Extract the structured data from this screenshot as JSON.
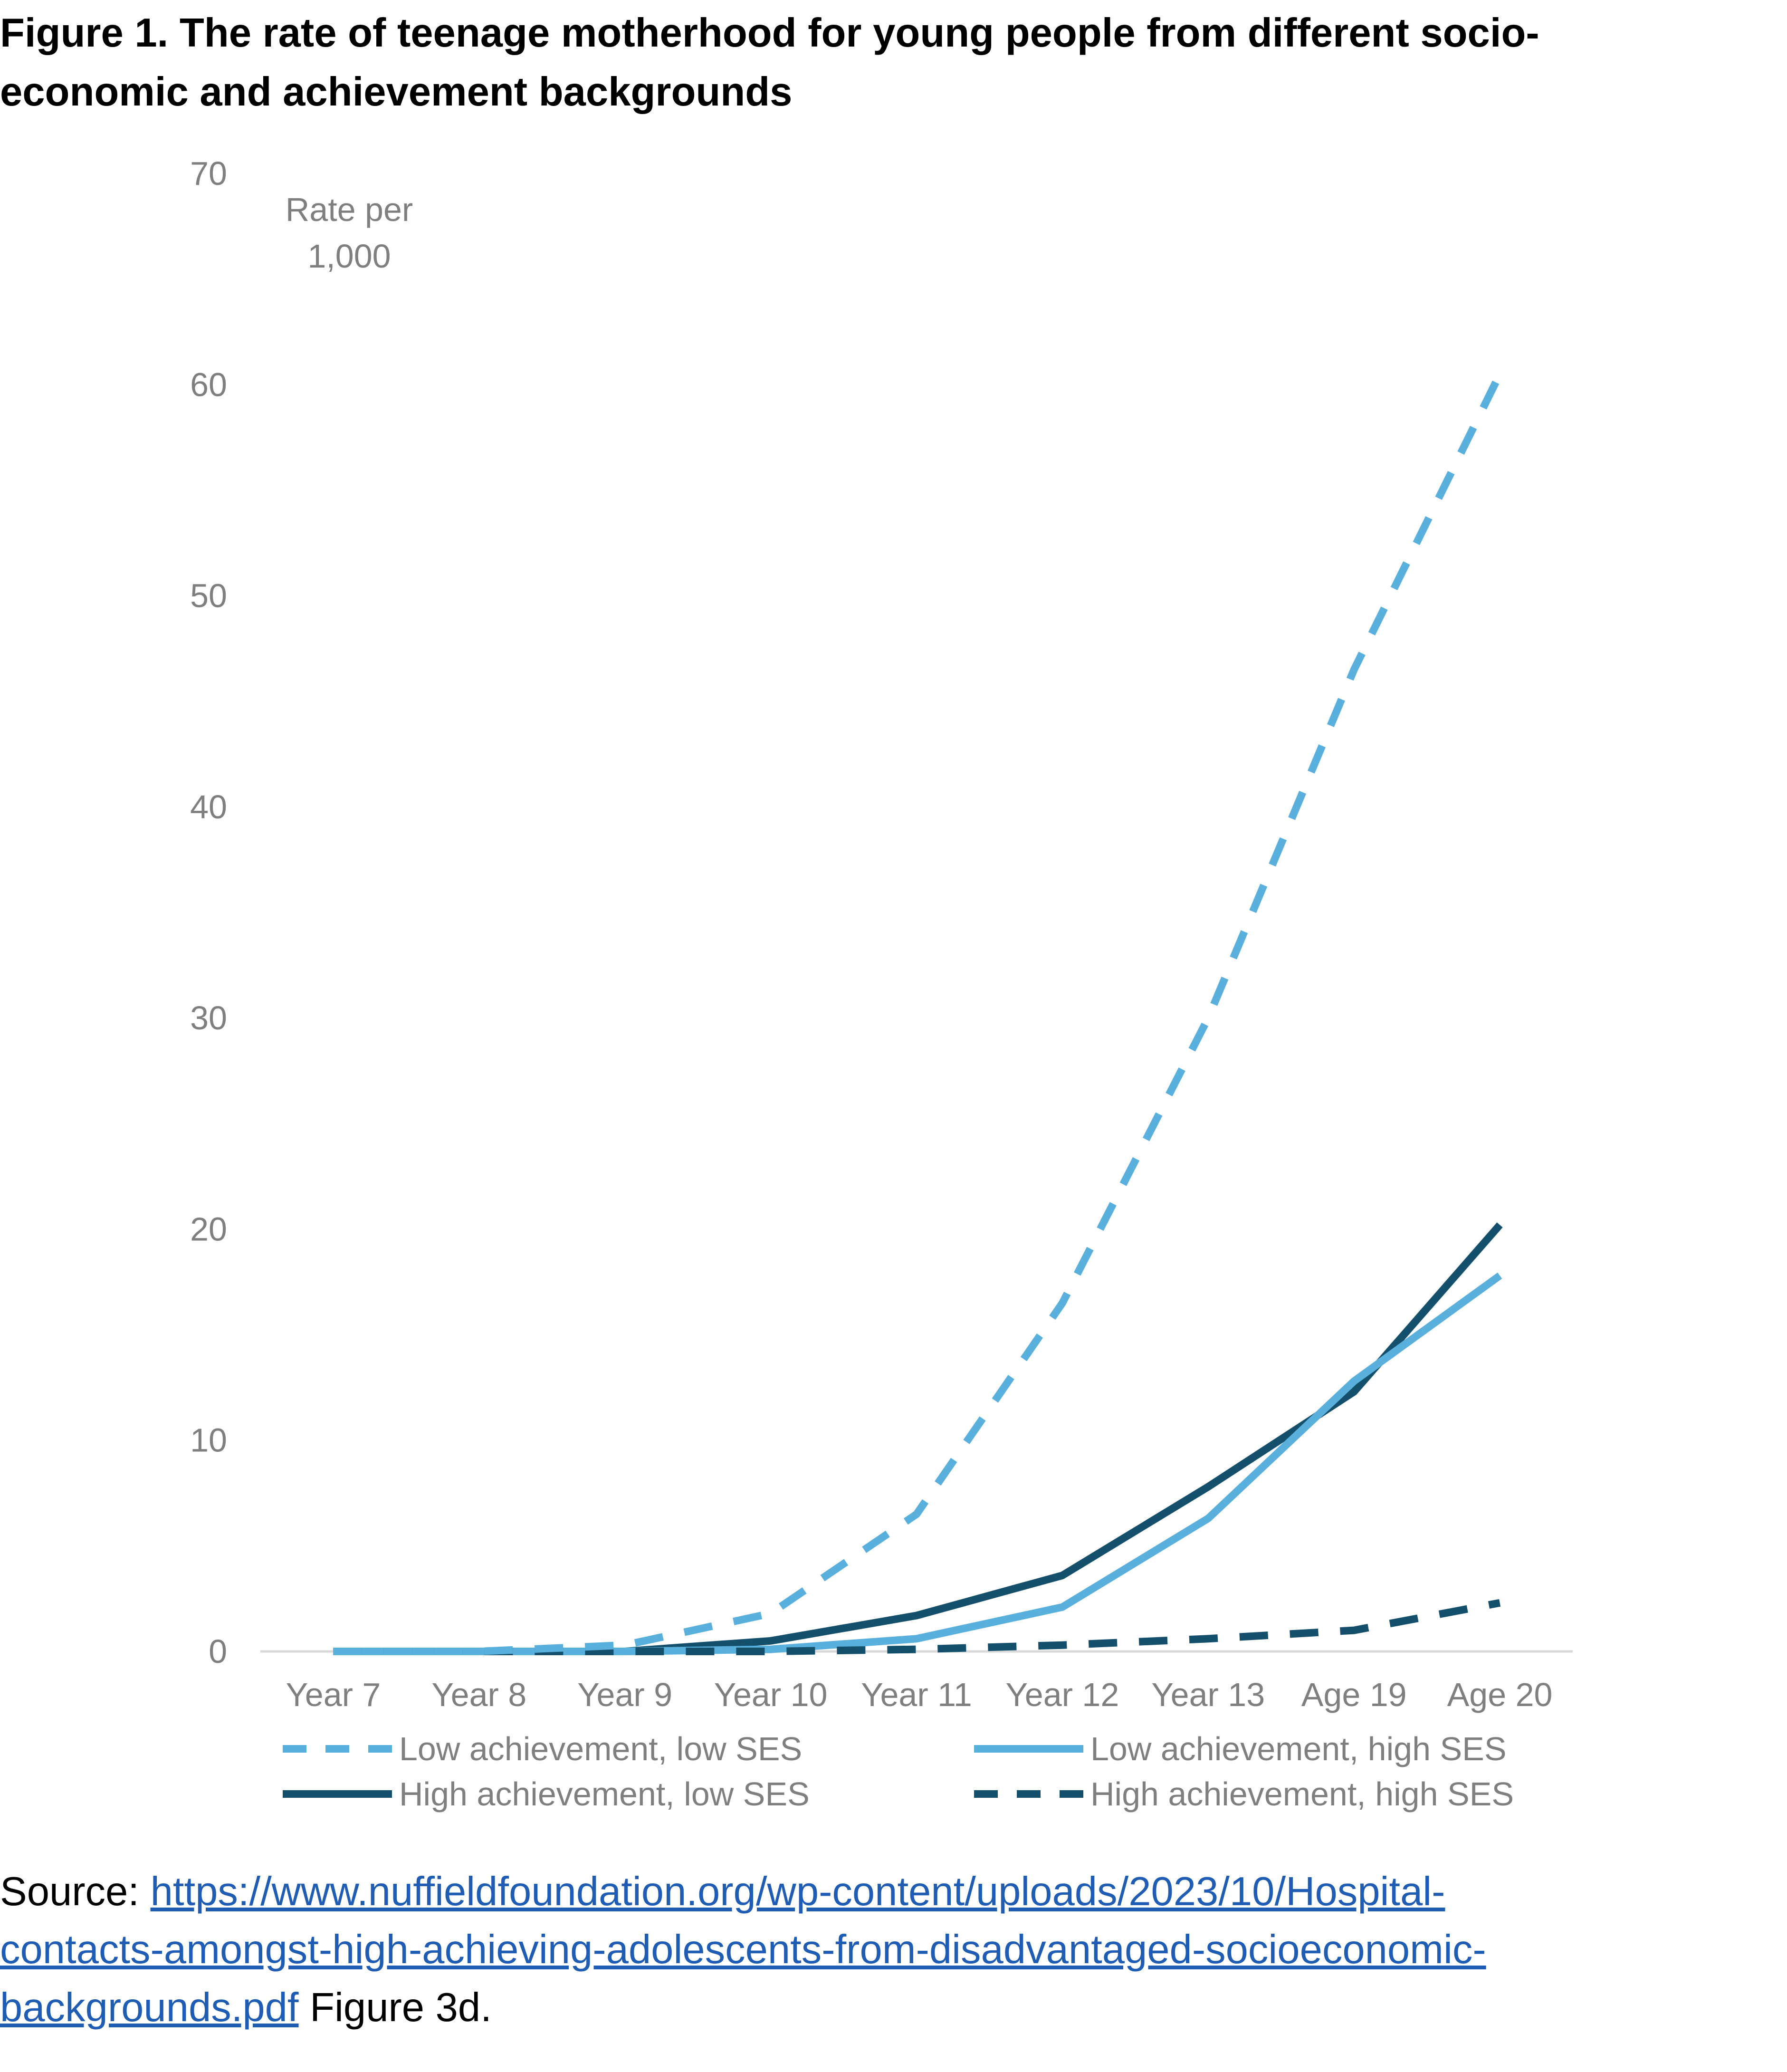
{
  "title_lines": [
    "Figure 1. The rate of teenage motherhood for young people from different socio-",
    "economic and achievement backgrounds"
  ],
  "source": {
    "prefix": "Source: ",
    "link_lines": [
      "https://www.nuffieldfoundation.org/wp-content/uploads/2023/10/Hospital-",
      "contacts-amongst-high-achieving-adolescents-from-disadvantaged-socioeconomic-",
      "backgrounds.pdf"
    ],
    "suffix": " Figure 3d."
  },
  "colors": {
    "light_blue": "#5ab0dc",
    "dark_blue": "#14506c",
    "axis_text": "#7f7f7f",
    "axis_line": "#d9d9d9"
  },
  "chart_data": {
    "type": "line",
    "title": "",
    "ylabel": "Rate per 1,000",
    "ylabel_lines": [
      "Rate per",
      "1,000"
    ],
    "xlabel": "",
    "ylim": [
      0,
      70
    ],
    "yticks": [
      0,
      10,
      20,
      30,
      40,
      50,
      60,
      70
    ],
    "grid": false,
    "legend_position": "bottom",
    "categories": [
      "Year 7",
      "Year 8",
      "Year 9",
      "Year 10",
      "Year 11",
      "Year 12",
      "Year 13",
      "Age 19",
      "Age 20"
    ],
    "series": [
      {
        "name": "Low achievement, low SES",
        "color": "#5ab0dc",
        "style": "dashed",
        "values": [
          0,
          0,
          0.3,
          1.8,
          6.5,
          16.5,
          30,
          46.5,
          60.5
        ]
      },
      {
        "name": "Low achievement, high SES",
        "color": "#5ab0dc",
        "style": "solid",
        "values": [
          0,
          0,
          0,
          0.1,
          0.6,
          2.1,
          6.3,
          12.8,
          17.8
        ]
      },
      {
        "name": "High achievement, low SES",
        "color": "#14506c",
        "style": "solid",
        "values": [
          0,
          0,
          0,
          0.5,
          1.7,
          3.6,
          7.8,
          12.3,
          20.2
        ]
      },
      {
        "name": "High achievement, high SES",
        "color": "#14506c",
        "style": "dashed",
        "values": [
          0,
          0,
          0,
          0,
          0.1,
          0.3,
          0.6,
          1.0,
          2.3
        ]
      }
    ]
  }
}
